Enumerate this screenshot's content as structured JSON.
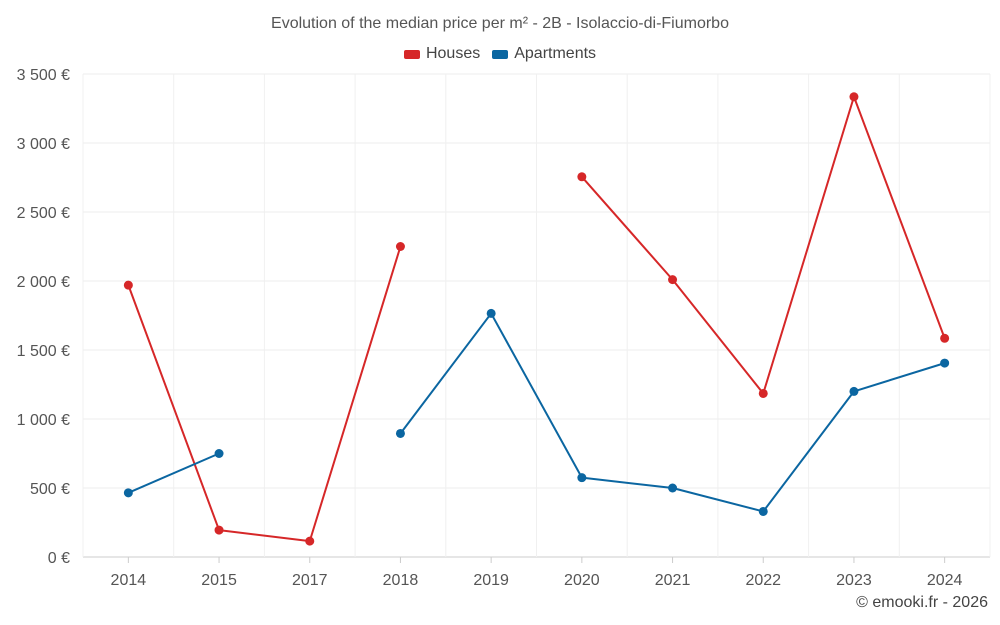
{
  "chart_data": {
    "type": "line",
    "title": "Evolution of the median price per m² - 2B - Isolaccio-di-Fiumorbo",
    "categories": [
      "2014",
      "2015",
      "2017",
      "2018",
      "2019",
      "2020",
      "2021",
      "2022",
      "2023",
      "2024"
    ],
    "ylim": [
      0,
      3500
    ],
    "yticks": [
      0,
      500,
      1000,
      1500,
      2000,
      2500,
      3000,
      3500
    ],
    "ytick_labels": [
      "0 €",
      "500 €",
      "1 000 €",
      "1 500 €",
      "2 000 €",
      "2 500 €",
      "3 000 €",
      "3 500 €"
    ],
    "xlabel": "",
    "ylabel": "",
    "grid": true,
    "legend_position": "top-center",
    "series": [
      {
        "name": "Houses",
        "color": "#d62728",
        "values": [
          1970,
          195,
          115,
          2250,
          null,
          2755,
          2010,
          1185,
          3335,
          1585
        ]
      },
      {
        "name": "Apartments",
        "color": "#0b66a1",
        "values": [
          465,
          750,
          null,
          895,
          1765,
          575,
          500,
          330,
          1200,
          1405
        ]
      }
    ]
  },
  "legend": {
    "houses_label": "Houses",
    "apartments_label": "Apartments",
    "houses_color": "#d62728",
    "apartments_color": "#0b66a1"
  },
  "credit": "© emooki.fr - 2026"
}
